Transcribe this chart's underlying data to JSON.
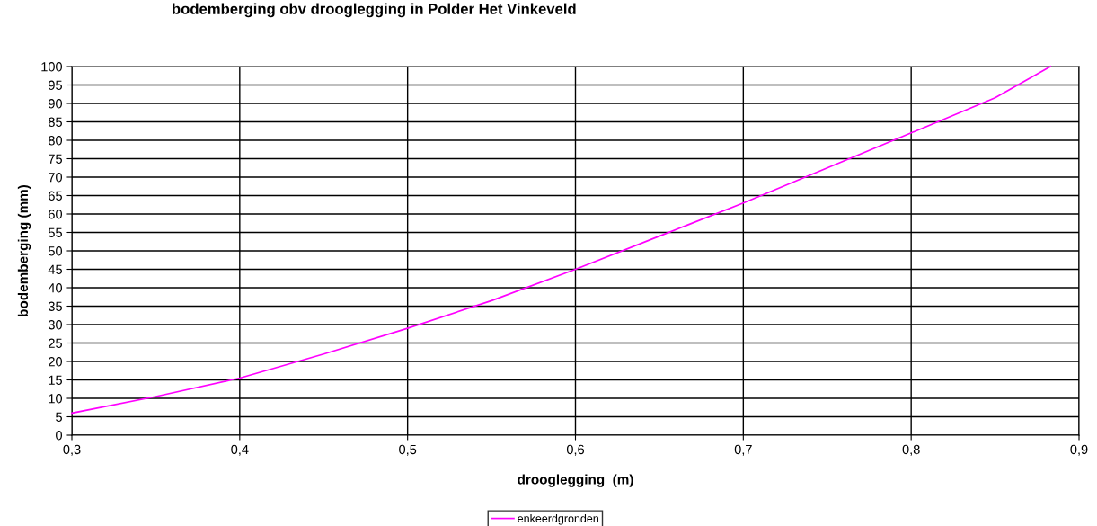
{
  "chart_data": {
    "type": "line",
    "title": "bodemberging obv drooglegging in Polder Het Vinkeveld",
    "xlabel": "drooglegging  (m)",
    "ylabel": "bodemberging (mm)",
    "series": [
      {
        "name": "enkeerdgronden",
        "color": "#ff00ff",
        "x": [
          0.3,
          0.35,
          0.4,
          0.45,
          0.5,
          0.55,
          0.6,
          0.65,
          0.7,
          0.75,
          0.8,
          0.85,
          0.883
        ],
        "values": [
          6,
          10.5,
          15.5,
          22,
          29,
          36.5,
          45,
          54,
          63,
          72.5,
          82,
          91.5,
          100
        ]
      }
    ],
    "xlim": [
      0.3,
      0.9
    ],
    "ylim": [
      0,
      100
    ],
    "xticks": [
      {
        "value": 0.3,
        "label": "0,3"
      },
      {
        "value": 0.4,
        "label": "0,4"
      },
      {
        "value": 0.5,
        "label": "0,5"
      },
      {
        "value": 0.6,
        "label": "0,6"
      },
      {
        "value": 0.7,
        "label": "0,7"
      },
      {
        "value": 0.8,
        "label": "0,8"
      },
      {
        "value": 0.9,
        "label": "0,9"
      }
    ],
    "yticks": [
      0,
      5,
      10,
      15,
      20,
      25,
      30,
      35,
      40,
      45,
      50,
      55,
      60,
      65,
      70,
      75,
      80,
      85,
      90,
      95,
      100
    ],
    "grid": true,
    "legend": "bottom",
    "marker": "none",
    "line_style": "solid"
  }
}
